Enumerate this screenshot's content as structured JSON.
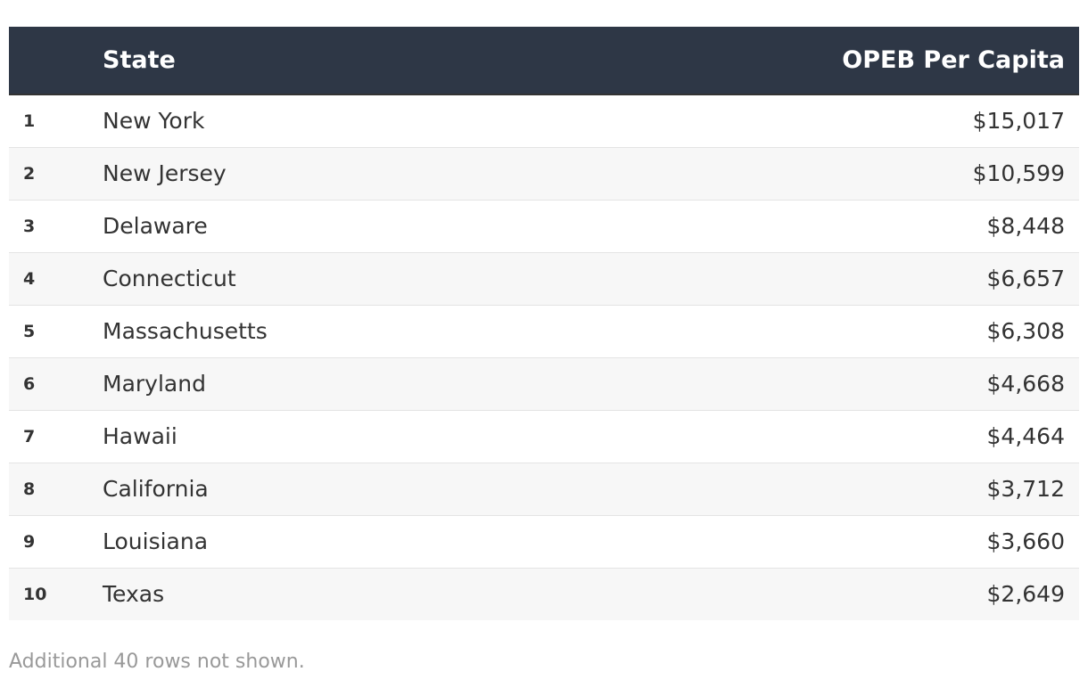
{
  "table": {
    "headers": {
      "rank": "",
      "state": "State",
      "value": "OPEB Per Capita"
    },
    "rows": [
      {
        "rank": "1",
        "state": "New York",
        "value": "$15,017"
      },
      {
        "rank": "2",
        "state": "New Jersey",
        "value": "$10,599"
      },
      {
        "rank": "3",
        "state": "Delaware",
        "value": "$8,448"
      },
      {
        "rank": "4",
        "state": "Connecticut",
        "value": "$6,657"
      },
      {
        "rank": "5",
        "state": "Massachusetts",
        "value": "$6,308"
      },
      {
        "rank": "6",
        "state": "Maryland",
        "value": "$4,668"
      },
      {
        "rank": "7",
        "state": "Hawaii",
        "value": "$4,464"
      },
      {
        "rank": "8",
        "state": "California",
        "value": "$3,712"
      },
      {
        "rank": "9",
        "state": "Louisiana",
        "value": "$3,660"
      },
      {
        "rank": "10",
        "state": "Texas",
        "value": "$2,649"
      }
    ]
  },
  "footer": "Additional 40 rows not shown.",
  "colors": {
    "header_bg": "#2e3746",
    "stripe": "#f7f7f7"
  }
}
